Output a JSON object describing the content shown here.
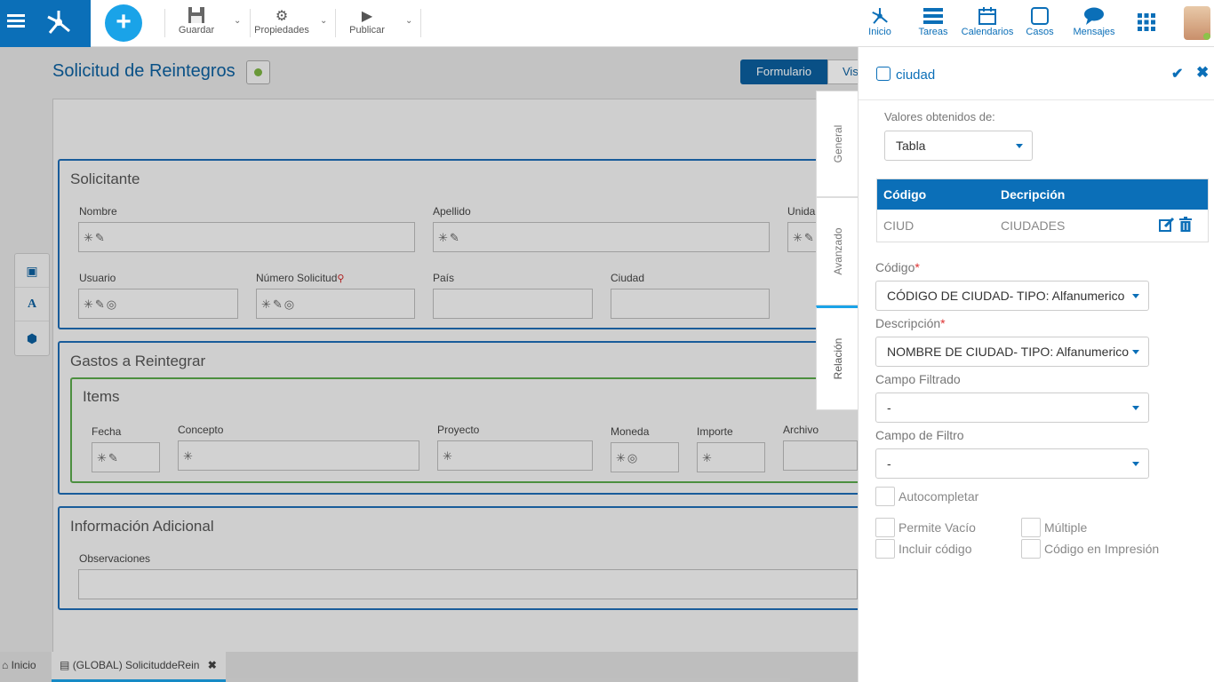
{
  "toolbar": {
    "save": "Guardar",
    "properties": "Propiedades",
    "publish": "Publicar"
  },
  "nav": {
    "home": "Inicio",
    "tasks": "Tareas",
    "calendars": "Calendarios",
    "cases": "Casos",
    "messages": "Mensajes"
  },
  "page": {
    "title": "Solicitud de Reintegros",
    "form_btn": "Formulario",
    "vis_btn": "Vis"
  },
  "panels": {
    "solicitante": {
      "title": "Solicitante",
      "fields": [
        "Nombre",
        "Apellido",
        "Unida",
        "Usuario",
        "Número Solicitud",
        "País",
        "Ciudad"
      ]
    },
    "gastos": {
      "title": "Gastos a Reintegrar",
      "group_title": "Items",
      "fields": [
        "Fecha",
        "Concepto",
        "Proyecto",
        "Moneda",
        "Importe",
        "Archivo"
      ]
    },
    "info": {
      "title": "Información Adicional",
      "fields": [
        "Observaciones"
      ]
    }
  },
  "field_icons": {
    "nombre": "✳✎",
    "apellido": "✳✎",
    "unida": "✳✎",
    "usuario": "✳✎◎",
    "numero": "✳✎◎",
    "fecha": "✳✎",
    "concepto": "✳",
    "proyecto": "✳",
    "moneda": "✳◎",
    "importe": "✳"
  },
  "side_tabs": [
    "General",
    "Avanzado",
    "Relación"
  ],
  "bottom_tabs": {
    "home": "Inicio",
    "doc": "(GLOBAL) SolicituddeRein"
  },
  "right_panel": {
    "title": "ciudad",
    "values_from_label": "Valores obtenidos de:",
    "values_from": "Tabla",
    "table": {
      "headers": [
        "Código",
        "Decripción"
      ],
      "rows": [
        {
          "code": "CIUD",
          "desc": "CIUDADES"
        }
      ]
    },
    "code_label": "Código",
    "code_value": "CÓDIGO DE CIUDAD- TIPO: Alfanumerico",
    "desc_label": "Descripción",
    "desc_value": "NOMBRE DE CIUDAD- TIPO: Alfanumerico",
    "filtered_label": "Campo Filtrado",
    "filtered_value": "-",
    "filter_label": "Campo de Filtro",
    "filter_value": "-",
    "checkboxes": {
      "autocomplete": "Autocompletar",
      "allow_empty": "Permite Vacío",
      "multiple": "Múltiple",
      "include_code": "Incluir código",
      "print_code": "Código en Impresión"
    }
  },
  "colors": {
    "brand": "#0b6fb8",
    "accent": "#1aa3e8",
    "group_border": "#5aa84a"
  }
}
